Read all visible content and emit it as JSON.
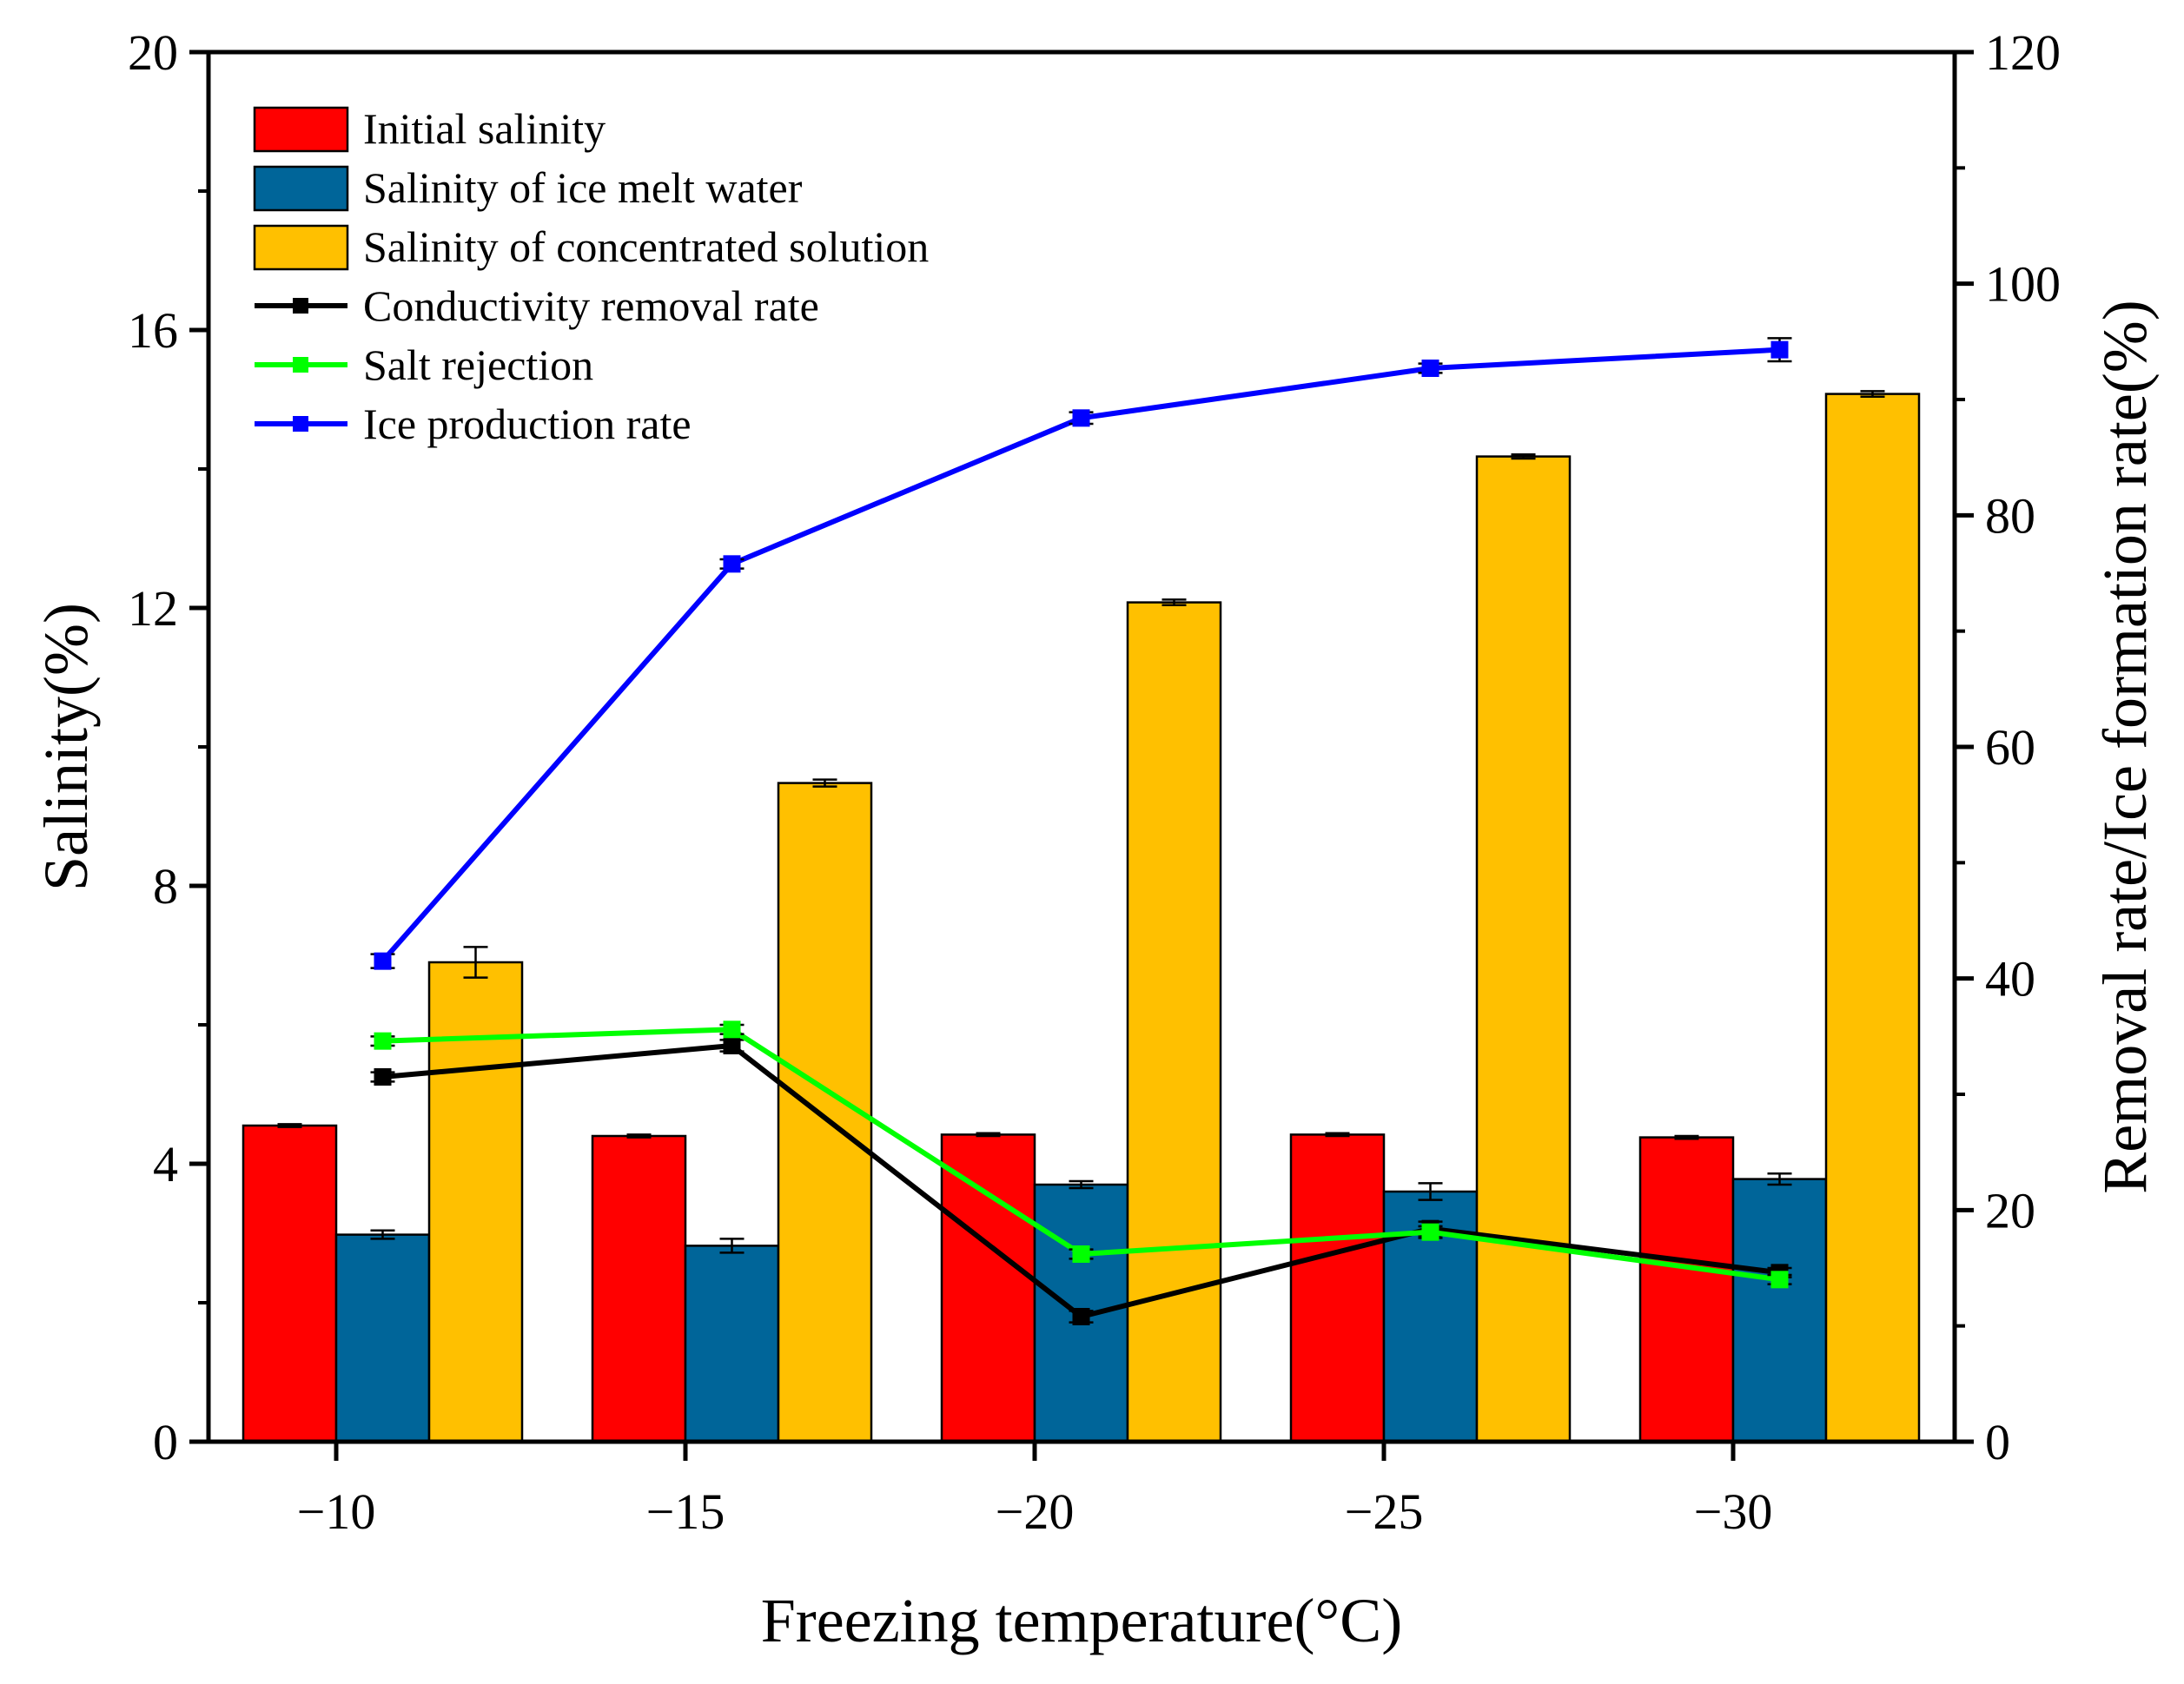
{
  "colors": {
    "initial": "#FF0000",
    "melt": "#006599",
    "concentrated": "#FFC000",
    "conductivity": "#000000",
    "rejection": "#00FF00",
    "ice": "#0000FF"
  },
  "chart_data": {
    "type": "bar",
    "xlabel": "Freezing temperature(°C)",
    "ylabel": "Salinity(%)",
    "y2label": "Removal rate/Ice formation rate(%)",
    "categories": [
      "−10",
      "−15",
      "−20",
      "−25",
      "−30"
    ],
    "ylim": [
      0,
      20
    ],
    "yticks": [
      "0",
      "4",
      "8",
      "12",
      "16",
      "20"
    ],
    "y2lim": [
      0,
      120
    ],
    "y2ticks": [
      "0",
      "20",
      "40",
      "60",
      "80",
      "100",
      "120"
    ],
    "bar_series": [
      {
        "name": "Initial salinity",
        "color_key": "initial",
        "values": [
          4.55,
          4.4,
          4.42,
          4.42,
          4.38
        ],
        "errors": [
          0.02,
          0.02,
          0.02,
          0.02,
          0.02
        ]
      },
      {
        "name": "Salinity of ice melt water",
        "color_key": "melt",
        "values": [
          2.98,
          2.82,
          3.7,
          3.6,
          3.78
        ],
        "errors": [
          0.06,
          0.1,
          0.05,
          0.12,
          0.08
        ]
      },
      {
        "name": "Salinity of concentrated solution",
        "color_key": "concentrated",
        "values": [
          6.9,
          9.48,
          12.08,
          14.18,
          15.08
        ],
        "errors": [
          0.22,
          0.05,
          0.04,
          0.03,
          0.04
        ]
      }
    ],
    "line_series": [
      {
        "name": "Conductivity removal rate",
        "color_key": "conductivity",
        "axis": "right",
        "values": [
          31.5,
          34.2,
          10.8,
          18.4,
          14.6
        ],
        "errors": [
          0.4,
          0.5,
          0.5,
          0.6,
          0.4
        ]
      },
      {
        "name": "Salt rejection",
        "color_key": "rejection",
        "axis": "right",
        "values": [
          34.6,
          35.6,
          16.2,
          18.1,
          14.0
        ],
        "errors": [
          0.4,
          0.4,
          0.4,
          0.5,
          0.4
        ]
      },
      {
        "name": "Ice production rate",
        "color_key": "ice",
        "axis": "right",
        "values": [
          41.5,
          75.8,
          88.4,
          92.7,
          94.3
        ],
        "errors": [
          0.6,
          0.4,
          0.5,
          0.4,
          1.0
        ]
      }
    ],
    "legend_position": "top-left"
  }
}
